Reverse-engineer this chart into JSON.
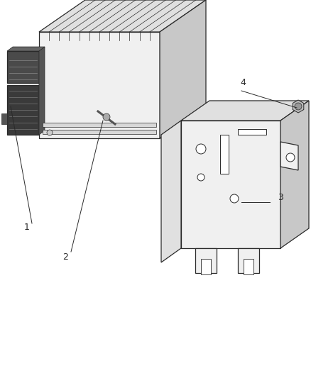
{
  "background_color": "#ffffff",
  "line_color": "#2a2a2a",
  "fill_light": "#f0f0f0",
  "fill_mid": "#e0e0e0",
  "fill_dark": "#c8c8c8",
  "fill_darkest": "#606060",
  "fig_width": 4.39,
  "fig_height": 5.33,
  "dpi": 100,
  "label_fontsize": 9
}
